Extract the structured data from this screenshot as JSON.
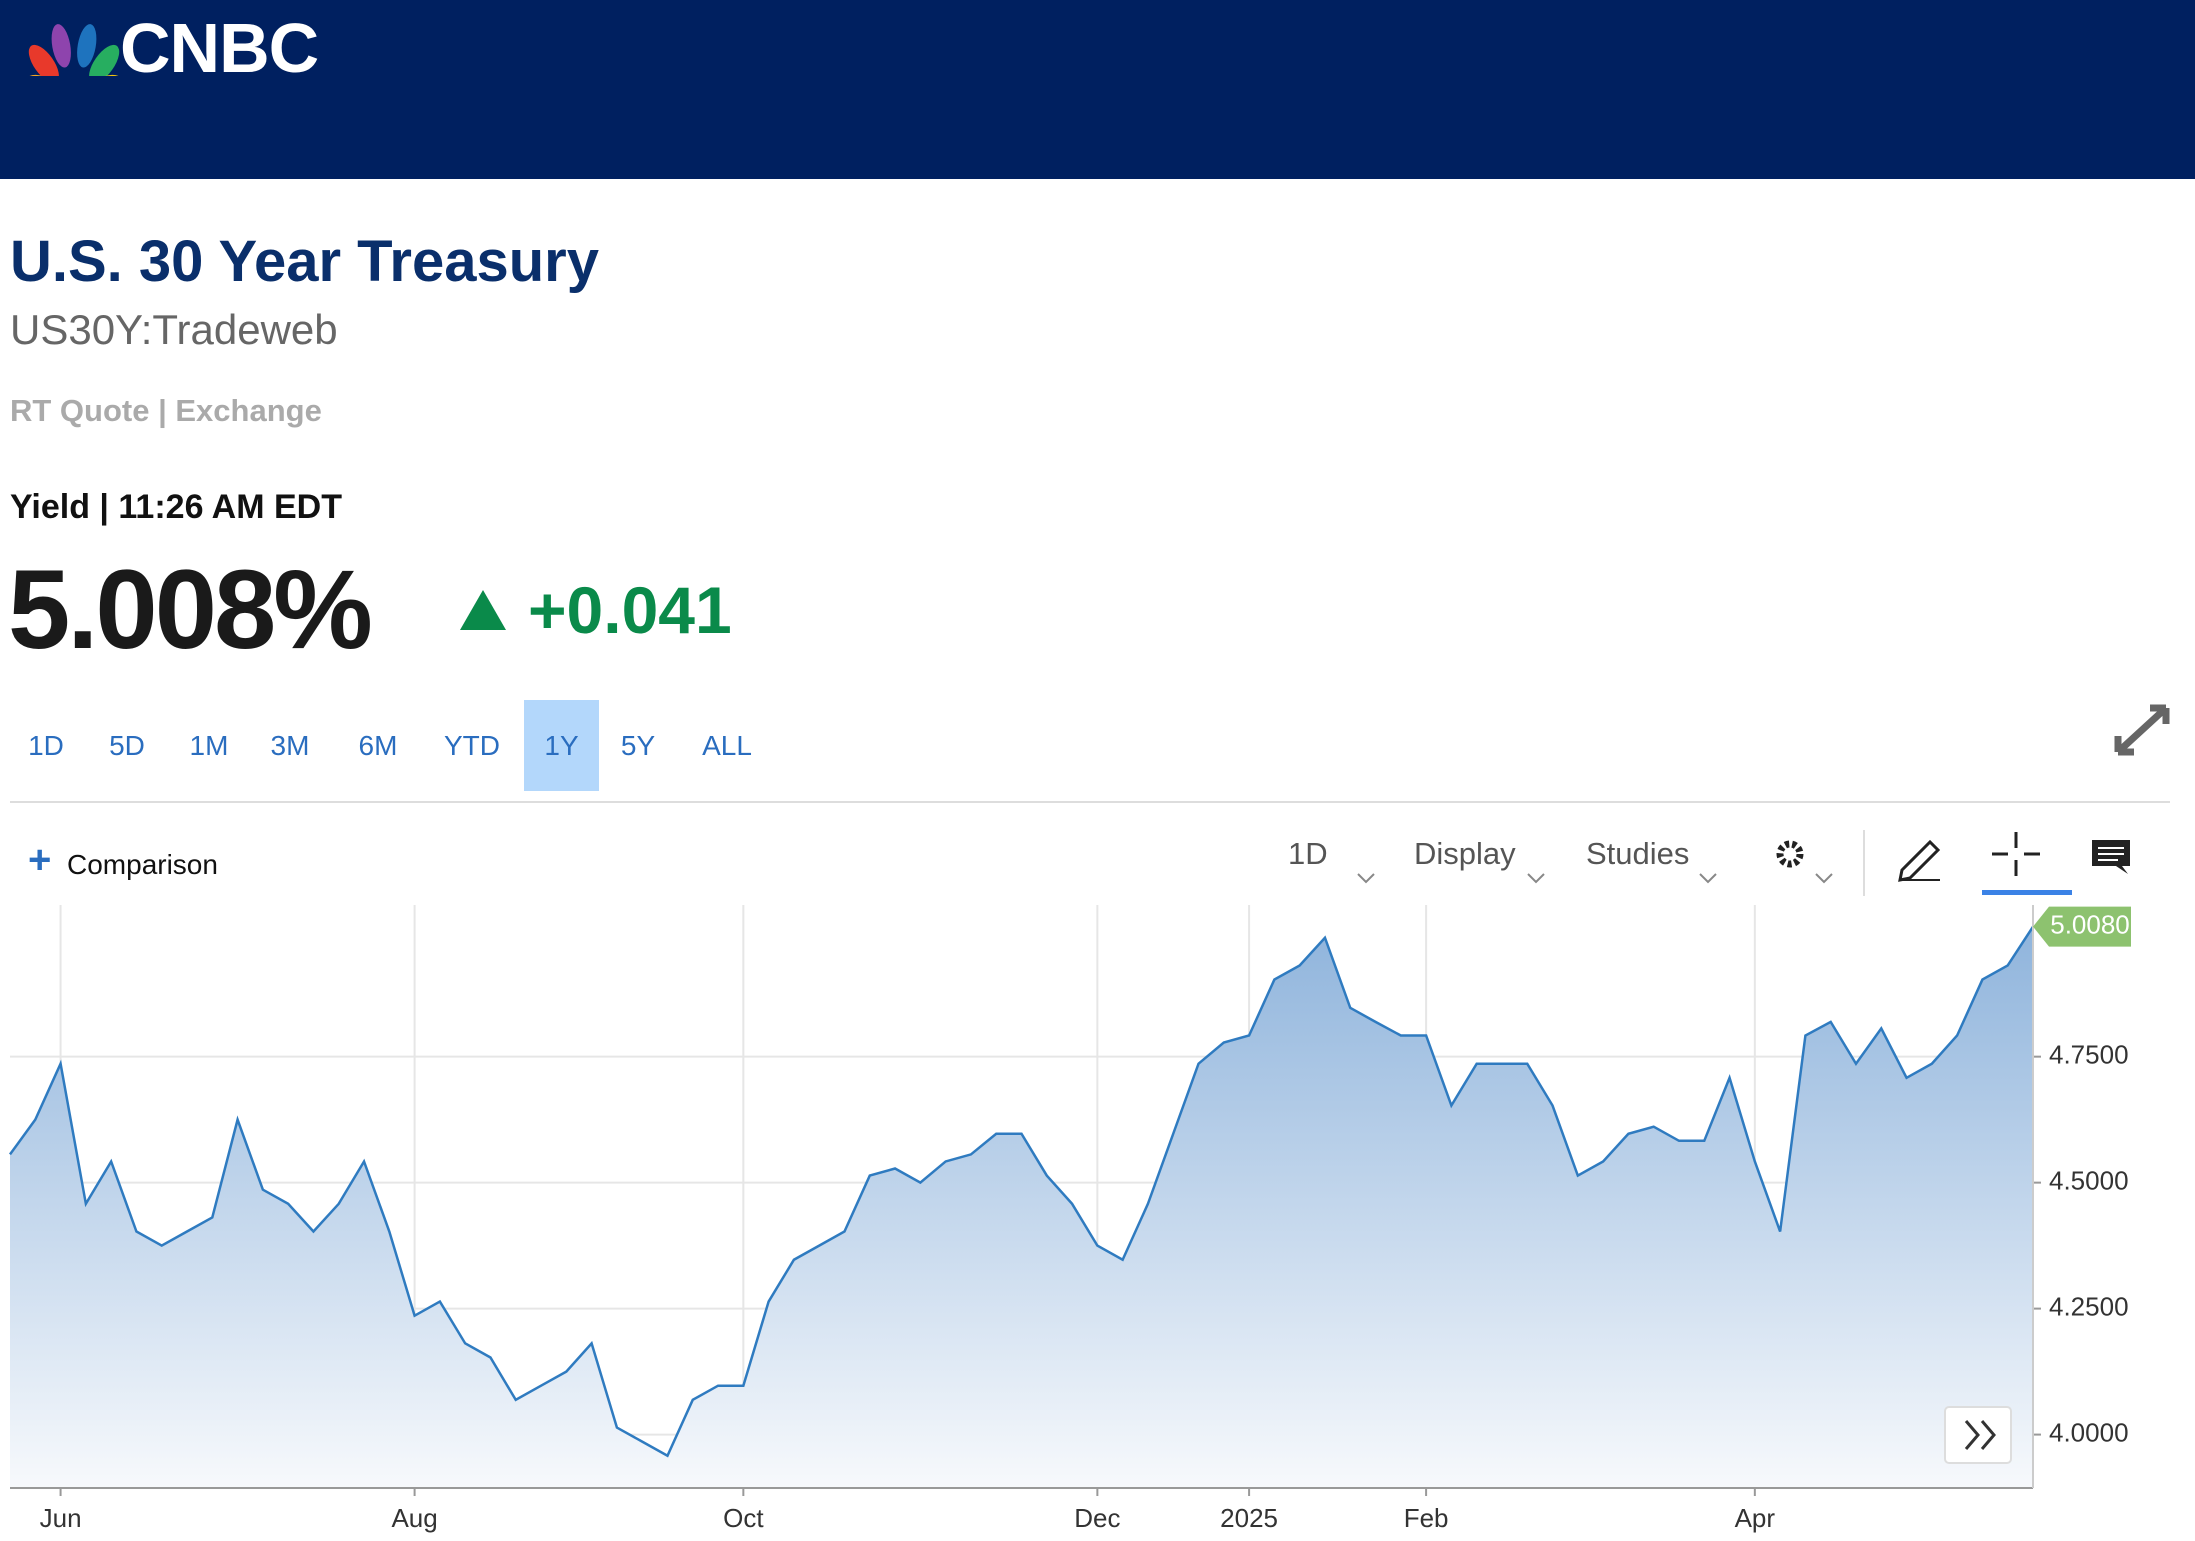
{
  "header": {
    "logo": "CNBC"
  },
  "quote": {
    "title": "U.S. 30 Year Treasury",
    "symbol": "US30Y:Tradeweb",
    "source": "RT Quote | Exchange",
    "time": "Yield | 11:26 AM EDT",
    "price": "5.008%",
    "change": "+0.041"
  },
  "ranges": {
    "items": [
      "1D",
      "5D",
      "1M",
      "3M",
      "6M",
      "YTD",
      "1Y",
      "5Y",
      "ALL"
    ],
    "selected_index": 6
  },
  "toolbar": {
    "comparison": "Comparison",
    "interval": "1D",
    "display": "Display",
    "studies": "Studies"
  },
  "chart_data": {
    "type": "line",
    "color": "#2f7bc0",
    "grid": true,
    "categories": [
      null,
      null,
      "Jun",
      null,
      null,
      null,
      null,
      null,
      null,
      null,
      null,
      null,
      null,
      null,
      null,
      null,
      "Aug",
      null,
      null,
      null,
      null,
      null,
      null,
      null,
      null,
      null,
      null,
      null,
      null,
      "Oct",
      null,
      null,
      null,
      null,
      null,
      null,
      null,
      null,
      null,
      null,
      null,
      null,
      null,
      "Dec",
      null,
      null,
      null,
      null,
      null,
      "2025",
      null,
      null,
      null,
      null,
      null,
      null,
      "Feb",
      null,
      null,
      null,
      null,
      null,
      null,
      null,
      null,
      null,
      null,
      null,
      null,
      "Apr",
      null,
      null,
      null,
      null,
      null,
      null,
      null,
      null,
      null,
      null,
      null
    ],
    "values": [
      4.556,
      4.625,
      4.736,
      4.458,
      4.542,
      4.403,
      4.375,
      4.403,
      4.431,
      4.625,
      4.486,
      4.458,
      4.403,
      4.458,
      4.542,
      4.403,
      4.236,
      4.264,
      4.181,
      4.153,
      4.069,
      4.097,
      4.125,
      4.181,
      4.014,
      3.986,
      3.958,
      4.069,
      4.097,
      4.097,
      4.264,
      4.347,
      4.375,
      4.403,
      4.514,
      4.528,
      4.5,
      4.542,
      4.556,
      4.597,
      4.597,
      4.514,
      4.458,
      4.375,
      4.347,
      4.458,
      4.597,
      4.736,
      4.778,
      4.792,
      4.903,
      4.931,
      4.986,
      4.847,
      4.819,
      4.792,
      4.792,
      4.653,
      4.736,
      4.736,
      4.736,
      4.653,
      4.514,
      4.542,
      4.597,
      4.611,
      4.583,
      4.583,
      4.708,
      4.542,
      4.403,
      4.792,
      4.819,
      4.736,
      4.806,
      4.708,
      4.736,
      4.792,
      4.903,
      4.931,
      5.008
    ],
    "ylim": [
      3.894,
      5.047
    ],
    "yticks": [
      {
        "value": 4.0,
        "label": "4.0000"
      },
      {
        "value": 4.25,
        "label": "4.2500"
      },
      {
        "value": 4.5,
        "label": "4.5000"
      },
      {
        "value": 4.75,
        "label": "4.7500"
      }
    ],
    "last_price": {
      "value": 5.008,
      "label": "5.0080"
    }
  }
}
